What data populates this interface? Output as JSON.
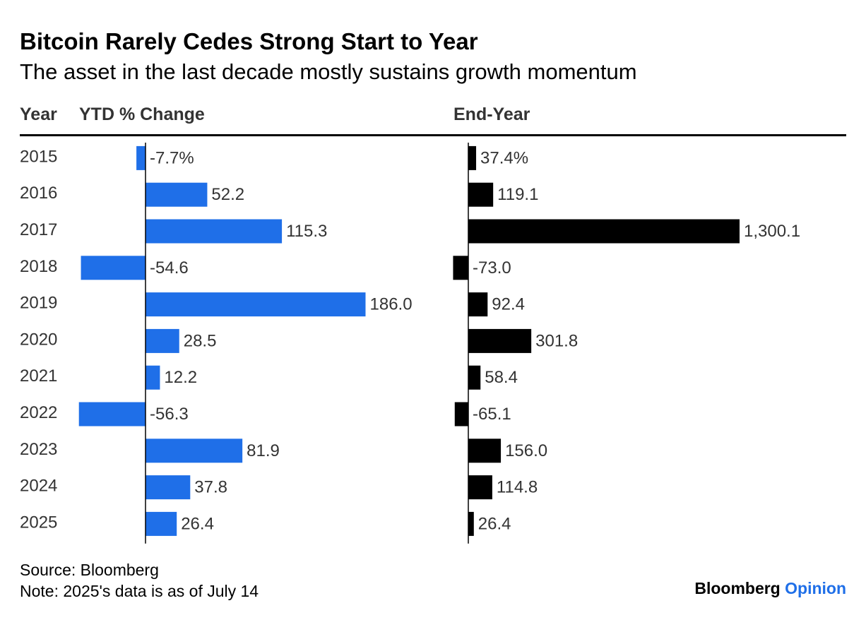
{
  "title": "Bitcoin Rarely Cedes Strong Start to Year",
  "subtitle": "The asset in the last decade mostly sustains growth momentum",
  "headers": {
    "year": "Year",
    "ytd": "YTD % Change",
    "end": "End-Year"
  },
  "source": "Source: Bloomberg",
  "note": "Note: 2025's data is as of July 14",
  "brand": {
    "name": "Bloomberg",
    "section": "Opinion"
  },
  "chart_data": {
    "type": "bar",
    "categories": [
      "2015",
      "2016",
      "2017",
      "2018",
      "2019",
      "2020",
      "2021",
      "2022",
      "2023",
      "2024",
      "2025"
    ],
    "series": [
      {
        "name": "YTD % Change",
        "color": "#1f6fe8",
        "values": [
          -7.7,
          52.2,
          115.3,
          -54.6,
          186.0,
          28.5,
          12.2,
          -56.3,
          81.9,
          37.8,
          26.4
        ],
        "labels": [
          "-7.7%",
          "52.2",
          "115.3",
          "-54.6",
          "186.0",
          "28.5",
          "12.2",
          "-56.3",
          "81.9",
          "37.8",
          "26.4"
        ]
      },
      {
        "name": "End-Year",
        "color": "#000000",
        "values": [
          37.4,
          119.1,
          1300.1,
          -73.0,
          92.4,
          301.8,
          58.4,
          -65.1,
          156.0,
          114.8,
          26.4
        ],
        "labels": [
          "37.4%",
          "119.1",
          "1,300.1",
          "-73.0",
          "92.4",
          "301.8",
          "58.4",
          "-65.1",
          "156.0",
          "114.8",
          "26.4"
        ]
      }
    ]
  }
}
